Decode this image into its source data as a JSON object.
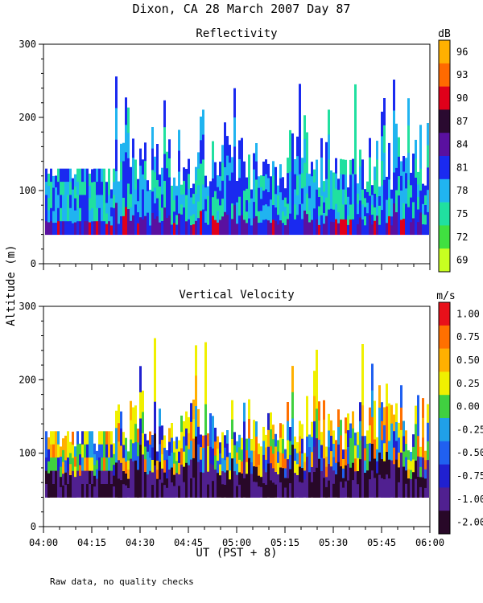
{
  "title": "Dixon, CA 28 March 2007  Day  87",
  "y_axis_label": "Altitude (m)",
  "x_axis_label": "UT  (PST + 8)",
  "footnote": "Raw data, no quality checks",
  "chart_data": [
    {
      "type": "heatmap",
      "title": "Reflectivity",
      "x_ticks": [
        "04:00",
        "04:15",
        "04:30",
        "04:45",
        "05:00",
        "05:15",
        "05:30",
        "05:45",
        "06:00"
      ],
      "x_range_minutes": [
        0,
        120
      ],
      "y_ticks": [
        0,
        100,
        200,
        300
      ],
      "ylim": [
        0,
        300
      ],
      "data_floor_m": 40,
      "typical_top_m": 140,
      "max_top_m": 260,
      "colorbar": {
        "unit": "dB",
        "labels": [
          "96",
          "93",
          "90",
          "87",
          "84",
          "81",
          "78",
          "75",
          "72",
          "69"
        ],
        "colors": [
          "#FFB000",
          "#FF6A00",
          "#E0001A",
          "#2A0A30",
          "#5A10A0",
          "#1A2AF0",
          "#20B4F0",
          "#20E0A0",
          "#40E040",
          "#C8FF20"
        ]
      }
    },
    {
      "type": "heatmap",
      "title": "Vertical Velocity",
      "x_ticks": [
        "04:00",
        "04:15",
        "04:30",
        "04:45",
        "05:00",
        "05:15",
        "05:30",
        "05:45",
        "06:00"
      ],
      "x_range_minutes": [
        0,
        120
      ],
      "y_ticks": [
        0,
        100,
        200,
        300
      ],
      "ylim": [
        0,
        300
      ],
      "data_floor_m": 40,
      "typical_top_m": 140,
      "max_top_m": 260,
      "colorbar": {
        "unit": "m/s",
        "labels": [
          "1.00",
          "0.75",
          "0.50",
          "0.25",
          "0.00",
          "-0.25",
          "-0.50",
          "-0.75",
          "-1.00",
          "-2.00"
        ],
        "colors": [
          "#E8101A",
          "#FF7000",
          "#FFB000",
          "#F0F000",
          "#40D040",
          "#20A0E8",
          "#2060F0",
          "#2020D0",
          "#502090",
          "#280828"
        ]
      }
    }
  ]
}
